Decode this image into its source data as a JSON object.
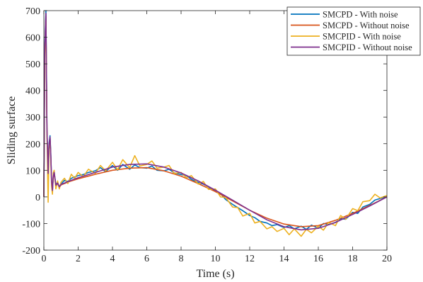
{
  "chart_data": {
    "type": "line",
    "title": "",
    "xlabel": "Time (s)",
    "ylabel": "Sliding surface",
    "xlim": [
      0,
      20
    ],
    "ylim": [
      -200,
      700
    ],
    "xticks": [
      0,
      2,
      4,
      6,
      8,
      10,
      12,
      14,
      16,
      18,
      20
    ],
    "yticks": [
      -200,
      -100,
      0,
      100,
      200,
      300,
      400,
      500,
      600,
      700
    ],
    "grid": false,
    "legend_position": "top-right",
    "series": [
      {
        "name": "SMCPD - With noise",
        "color": "#0072BD",
        "x": [
          0,
          0.05,
          0.12,
          0.18,
          0.25,
          0.3,
          0.36,
          0.4,
          0.45,
          0.5,
          0.55,
          0.6,
          0.7,
          0.8,
          0.9,
          1.0,
          1.2,
          1.4,
          1.6,
          1.8,
          2,
          2.3,
          2.6,
          3,
          3.3,
          3.6,
          4,
          4.3,
          4.6,
          5,
          5.3,
          5.6,
          6,
          6.3,
          6.6,
          7,
          7.3,
          7.6,
          8,
          8.3,
          8.6,
          9,
          9.3,
          9.6,
          10,
          10.3,
          10.6,
          11,
          11.3,
          11.6,
          12,
          12.3,
          12.6,
          13,
          13.3,
          13.6,
          14,
          14.3,
          14.6,
          15,
          15.3,
          15.6,
          16,
          16.3,
          16.6,
          17,
          17.3,
          17.6,
          18,
          18.3,
          18.6,
          19,
          19.3,
          19.6,
          20
        ],
        "y": [
          0,
          560,
          700,
          260,
          90,
          200,
          230,
          170,
          60,
          25,
          80,
          95,
          45,
          55,
          38,
          48,
          62,
          58,
          70,
          75,
          80,
          84,
          92,
          98,
          110,
          95,
          118,
          100,
          122,
          104,
          120,
          110,
          108,
          116,
          100,
          98,
          104,
          90,
          84,
          80,
          66,
          54,
          48,
          38,
          20,
          12,
          -10,
          -28,
          -40,
          -52,
          -70,
          -78,
          -92,
          -98,
          -108,
          -104,
          -115,
          -108,
          -120,
          -110,
          -122,
          -106,
          -118,
          -100,
          -104,
          -96,
          -82,
          -84,
          -58,
          -62,
          -38,
          -28,
          -12,
          -6,
          0
        ]
      },
      {
        "name": "SMCPD - Without noise",
        "color": "#D95319",
        "x": [
          0,
          0.05,
          0.12,
          0.18,
          0.25,
          0.3,
          0.36,
          0.4,
          0.45,
          0.5,
          0.55,
          0.6,
          0.7,
          0.8,
          0.9,
          1.0,
          1.5,
          2,
          3,
          4,
          5,
          6,
          7,
          8,
          9,
          10,
          11,
          12,
          13,
          14,
          15,
          16,
          17,
          18,
          19,
          20
        ],
        "y": [
          0,
          540,
          680,
          250,
          85,
          190,
          220,
          160,
          55,
          22,
          75,
          88,
          42,
          50,
          36,
          45,
          58,
          68,
          85,
          100,
          108,
          110,
          98,
          78,
          50,
          20,
          -15,
          -50,
          -80,
          -102,
          -112,
          -108,
          -88,
          -62,
          -32,
          0
        ]
      },
      {
        "name": "SMCPID - With noise",
        "color": "#EDB120",
        "x": [
          0,
          0.05,
          0.12,
          0.18,
          0.25,
          0.3,
          0.36,
          0.4,
          0.45,
          0.5,
          0.55,
          0.6,
          0.7,
          0.8,
          0.9,
          1.0,
          1.2,
          1.4,
          1.6,
          1.8,
          2,
          2.3,
          2.6,
          3,
          3.3,
          3.6,
          4,
          4.3,
          4.6,
          5,
          5.3,
          5.6,
          6,
          6.3,
          6.6,
          7,
          7.3,
          7.6,
          8,
          8.3,
          8.6,
          9,
          9.3,
          9.6,
          10,
          10.3,
          10.6,
          11,
          11.3,
          11.6,
          12,
          12.3,
          12.6,
          13,
          13.3,
          13.6,
          14,
          14.3,
          14.6,
          15,
          15.3,
          15.6,
          16,
          16.3,
          16.6,
          17,
          17.3,
          17.6,
          18,
          18.3,
          18.6,
          19,
          19.3,
          19.6,
          20
        ],
        "y": [
          0,
          520,
          660,
          240,
          -20,
          180,
          210,
          150,
          40,
          10,
          90,
          100,
          30,
          60,
          30,
          55,
          70,
          50,
          85,
          70,
          92,
          76,
          104,
          88,
          118,
          98,
          130,
          102,
          140,
          110,
          155,
          116,
          122,
          135,
          108,
          112,
          118,
          88,
          92,
          72,
          80,
          48,
          58,
          28,
          30,
          0,
          -2,
          -38,
          -40,
          -72,
          -62,
          -98,
          -92,
          -120,
          -112,
          -130,
          -118,
          -142,
          -120,
          -148,
          -122,
          -135,
          -110,
          -125,
          -96,
          -108,
          -70,
          -84,
          -44,
          -52,
          -18,
          -14,
          10,
          -4,
          5
        ]
      },
      {
        "name": "SMCPID - Without noise",
        "color": "#7E2F8E",
        "x": [
          0,
          0.05,
          0.12,
          0.18,
          0.25,
          0.3,
          0.36,
          0.4,
          0.45,
          0.5,
          0.55,
          0.6,
          0.7,
          0.8,
          0.9,
          1.0,
          1.5,
          2,
          3,
          4,
          5,
          6,
          7,
          8,
          9,
          10,
          11,
          12,
          13,
          14,
          15,
          16,
          17,
          18,
          19,
          20
        ],
        "y": [
          0,
          550,
          690,
          255,
          88,
          195,
          225,
          165,
          58,
          24,
          78,
          92,
          44,
          52,
          38,
          47,
          60,
          72,
          92,
          112,
          122,
          124,
          112,
          90,
          60,
          25,
          -12,
          -50,
          -86,
          -112,
          -124,
          -118,
          -96,
          -66,
          -34,
          0
        ]
      }
    ]
  }
}
